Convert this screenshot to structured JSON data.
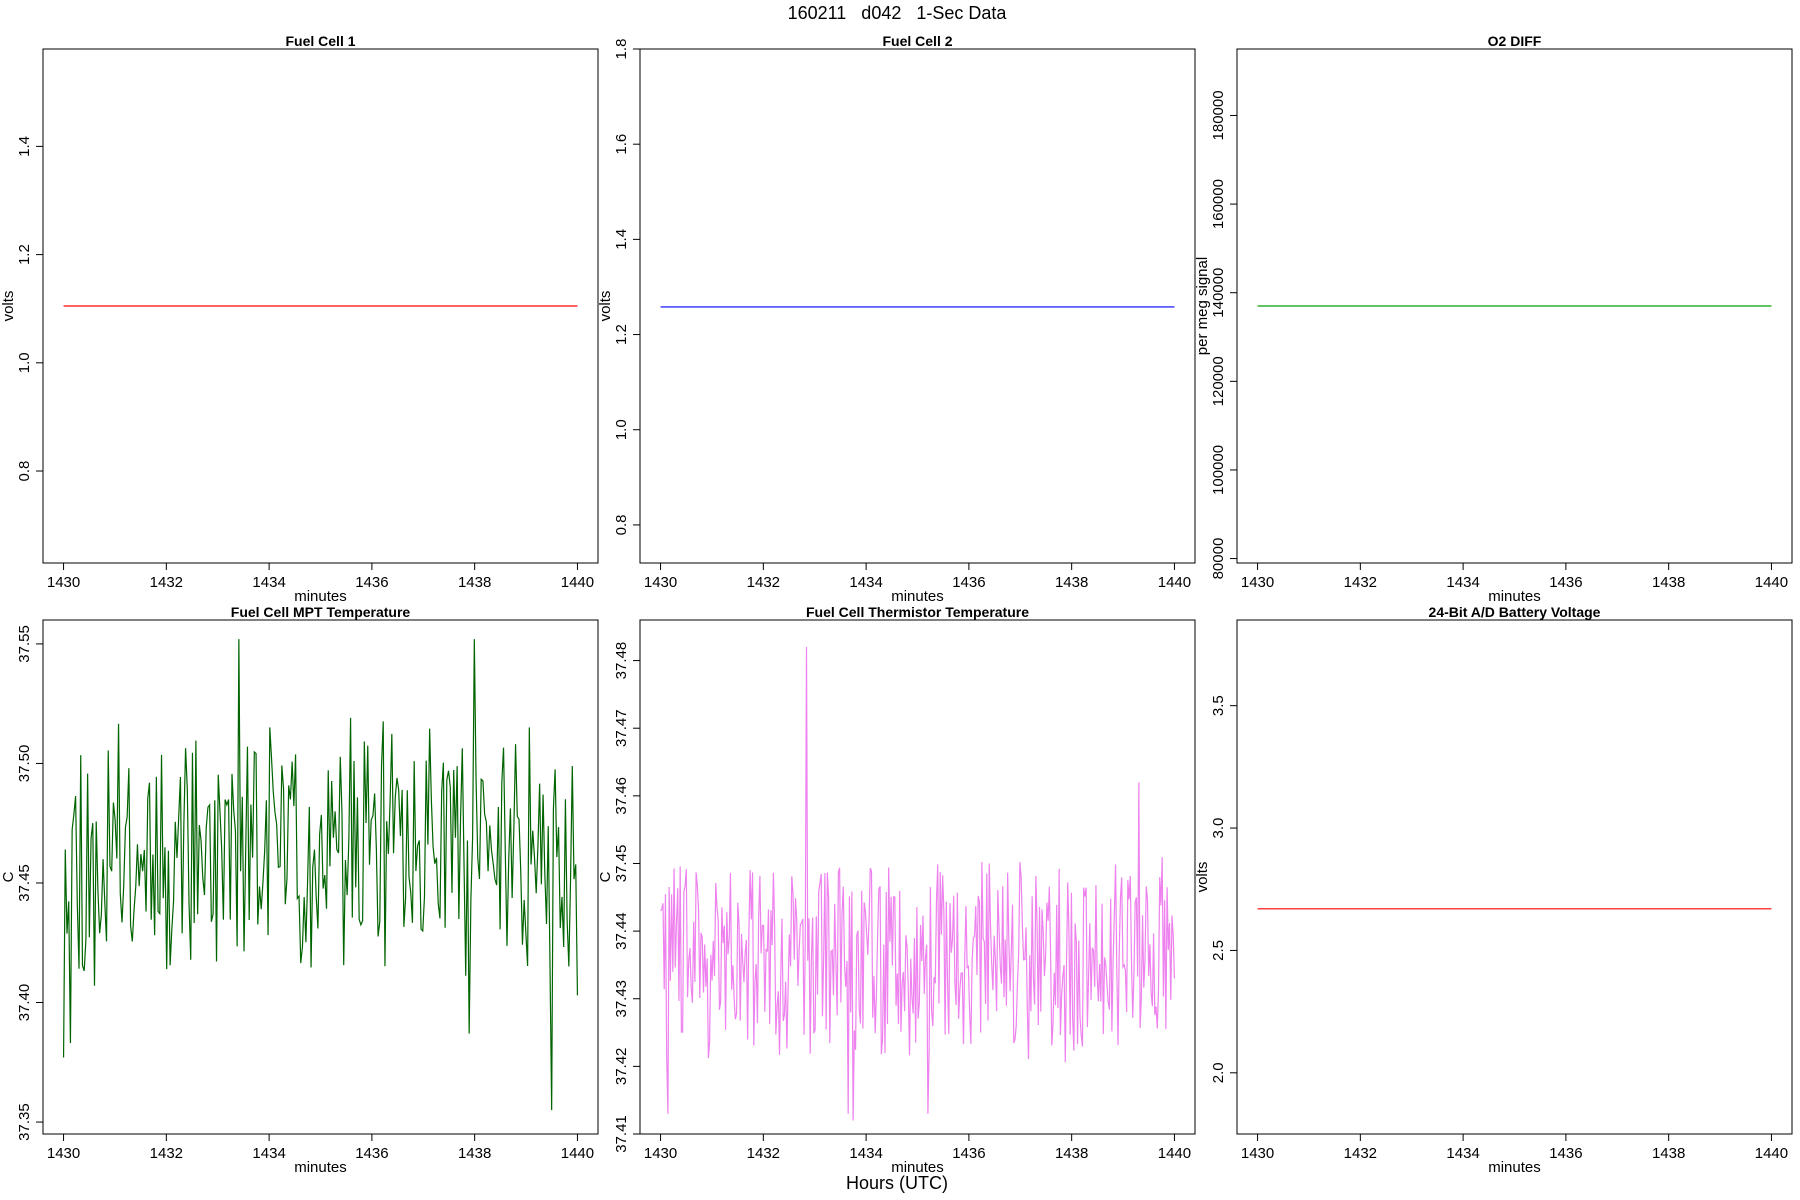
{
  "figure": {
    "title": "160211   d042   1-Sec Data",
    "footer_label": "Hours (UTC)"
  },
  "chart_data": [
    {
      "type": "line",
      "title": "Fuel Cell 1",
      "xlabel": "minutes",
      "ylabel": "volts",
      "xlim": [
        1429.6,
        1440.4
      ],
      "ylim": [
        0.63,
        1.58
      ],
      "xticks": [
        1430,
        1432,
        1434,
        1436,
        1438,
        1440
      ],
      "xtick_labels": [
        "1430",
        "1432",
        "1434",
        "1436",
        "1438",
        "1440"
      ],
      "yticks": [
        0.8,
        1.0,
        1.2,
        1.4
      ],
      "ytick_labels": [
        "0.8",
        "1.0",
        "1.2",
        "1.4"
      ],
      "series": [
        {
          "color": "#ff0000",
          "kind": "constant",
          "x": [
            1430,
            1440
          ],
          "y": [
            1.105,
            1.105
          ]
        }
      ]
    },
    {
      "type": "line",
      "title": "Fuel Cell 2",
      "xlabel": "minutes",
      "ylabel": "volts",
      "xlim": [
        1429.6,
        1440.4
      ],
      "ylim": [
        0.72,
        1.8
      ],
      "xticks": [
        1430,
        1432,
        1434,
        1436,
        1438,
        1440
      ],
      "xtick_labels": [
        "1430",
        "1432",
        "1434",
        "1436",
        "1438",
        "1440"
      ],
      "yticks": [
        0.8,
        1.0,
        1.2,
        1.4,
        1.6,
        1.8
      ],
      "ytick_labels": [
        "0.8",
        "1.0",
        "1.2",
        "1.4",
        "1.6",
        "1.8"
      ],
      "series": [
        {
          "color": "#0000ff",
          "kind": "constant",
          "x": [
            1430,
            1440
          ],
          "y": [
            1.258,
            1.258
          ]
        }
      ]
    },
    {
      "type": "line",
      "title": "O2 DIFF",
      "xlabel": "minutes",
      "ylabel": "per meg signal",
      "xlim": [
        1429.6,
        1440.4
      ],
      "ylim": [
        79000,
        195000
      ],
      "xticks": [
        1430,
        1432,
        1434,
        1436,
        1438,
        1440
      ],
      "xtick_labels": [
        "1430",
        "1432",
        "1434",
        "1436",
        "1438",
        "1440"
      ],
      "yticks": [
        80000,
        100000,
        120000,
        140000,
        160000,
        180000
      ],
      "ytick_labels": [
        "80000",
        "100000",
        "120000",
        "140000",
        "160000",
        "180000"
      ],
      "series": [
        {
          "color": "#00a000",
          "kind": "constant",
          "x": [
            1430,
            1440
          ],
          "y": [
            137000,
            137000
          ]
        }
      ]
    },
    {
      "type": "line",
      "title": "Fuel Cell MPT Temperature",
      "xlabel": "minutes",
      "ylabel": "C",
      "xlim": [
        1429.6,
        1440.4
      ],
      "ylim": [
        37.345,
        37.56
      ],
      "xticks": [
        1430,
        1432,
        1434,
        1436,
        1438,
        1440
      ],
      "xtick_labels": [
        "1430",
        "1432",
        "1434",
        "1436",
        "1438",
        "1440"
      ],
      "yticks": [
        37.35,
        37.4,
        37.45,
        37.5,
        37.55
      ],
      "ytick_labels": [
        "37.35",
        "37.40",
        "37.45",
        "37.50",
        "37.55"
      ],
      "series": [
        {
          "color": "#006400",
          "kind": "noisy",
          "x_start": 1430,
          "x_end": 1440,
          "n": 300,
          "seed": 11,
          "base": 37.465,
          "amp": 0.045,
          "min": 37.355,
          "max": 37.552,
          "points": [
            [
              1430.0,
              37.377
            ],
            [
              1430.05,
              37.464
            ],
            [
              1430.15,
              37.383
            ],
            [
              1430.6,
              37.407
            ],
            [
              1433.4,
              37.552
            ],
            [
              1437.9,
              37.387
            ],
            [
              1438.0,
              37.552
            ],
            [
              1439.5,
              37.355
            ],
            [
              1439.75,
              37.485
            ],
            [
              1440.0,
              37.403
            ]
          ]
        }
      ]
    },
    {
      "type": "line",
      "title": "Fuel Cell Thermistor Temperature",
      "xlabel": "minutes",
      "ylabel": "C",
      "xlim": [
        1429.6,
        1440.4
      ],
      "ylim": [
        37.41,
        37.486
      ],
      "xticks": [
        1430,
        1432,
        1434,
        1436,
        1438,
        1440
      ],
      "xtick_labels": [
        "1430",
        "1432",
        "1434",
        "1436",
        "1438",
        "1440"
      ],
      "yticks": [
        37.41,
        37.42,
        37.43,
        37.44,
        37.45,
        37.46,
        37.47,
        37.48
      ],
      "ytick_labels": [
        "37.41",
        "37.42",
        "37.43",
        "37.44",
        "37.45",
        "37.46",
        "37.47",
        "37.48"
      ],
      "series": [
        {
          "color": "#ee82ee",
          "kind": "noisy",
          "x_start": 1430,
          "x_end": 1440,
          "n": 420,
          "seed": 29,
          "base": 37.436,
          "amp": 0.013,
          "min": 37.412,
          "max": 37.482,
          "points": [
            [
              1430.0,
              37.443
            ],
            [
              1430.15,
              37.413
            ],
            [
              1432.85,
              37.482
            ],
            [
              1433.65,
              37.413
            ],
            [
              1433.75,
              37.412
            ],
            [
              1435.2,
              37.413
            ],
            [
              1439.3,
              37.462
            ],
            [
              1440.0,
              37.433
            ]
          ]
        }
      ]
    },
    {
      "type": "line",
      "title": "24-Bit A/D Battery Voltage",
      "xlabel": "minutes",
      "ylabel": "volts",
      "xlim": [
        1429.6,
        1440.4
      ],
      "ylim": [
        1.75,
        3.85
      ],
      "xticks": [
        1430,
        1432,
        1434,
        1436,
        1438,
        1440
      ],
      "xtick_labels": [
        "1430",
        "1432",
        "1434",
        "1436",
        "1438",
        "1440"
      ],
      "yticks": [
        2.0,
        2.5,
        3.0,
        3.5
      ],
      "ytick_labels": [
        "2.0",
        "2.5",
        "3.0",
        "3.5"
      ],
      "series": [
        {
          "color": "#ff0000",
          "kind": "constant",
          "x": [
            1430,
            1440
          ],
          "y": [
            2.67,
            2.67
          ]
        }
      ]
    }
  ]
}
